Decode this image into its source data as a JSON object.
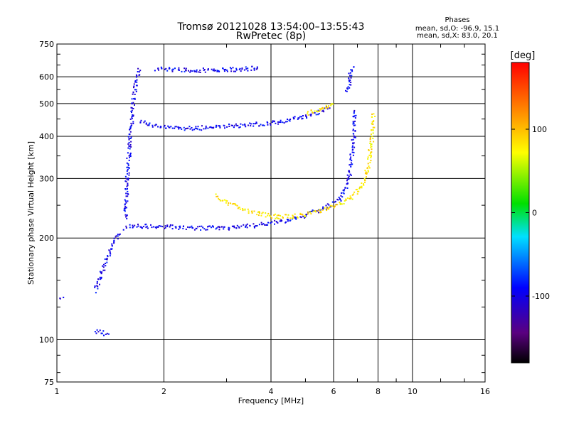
{
  "chart_data": {
    "type": "scatter",
    "title": "Tromsø 20121028 13:54:00–13:55:43",
    "subtitle": "RwPretec (8p)",
    "xlabel": "Frequency [MHz]",
    "ylabel": "Stationary phase Virtual Height [km]",
    "xscale": "log",
    "yscale": "log",
    "xlim": [
      1,
      16
    ],
    "ylim": [
      75,
      750
    ],
    "grid": true,
    "x_ticks": [
      1,
      2,
      4,
      6,
      8,
      10,
      16
    ],
    "x_tick_labels": [
      "1",
      "2",
      "4",
      "6",
      "8",
      "10",
      "16"
    ],
    "x_minor_ticks": [
      3,
      5,
      7,
      9,
      12,
      14
    ],
    "y_ticks": [
      75,
      100,
      200,
      300,
      400,
      500,
      600,
      750
    ],
    "y_tick_labels": [
      "75",
      "100",
      "200",
      "300",
      "400",
      "500",
      "600",
      "750"
    ],
    "y_minor_ticks": [
      80,
      90,
      125,
      150,
      175,
      250,
      350,
      450,
      550,
      650,
      700
    ],
    "stats": {
      "title": "Phases",
      "line_o": "mean, sd,O: -96.9, 15.1",
      "line_x": "mean, sd,X: 83.0, 20.1"
    },
    "colorbar": {
      "label": "[deg]",
      "min": -180,
      "max": 180,
      "ticks": [
        100,
        0,
        -100
      ],
      "tick_labels": [
        "100",
        "0",
        "-100"
      ]
    },
    "series": [
      {
        "mode": "O",
        "phase_deg": -97,
        "traces": [
          {
            "x": [
              1.28,
              1.3,
              1.33,
              1.36,
              1.39,
              1.42,
              1.45,
              1.48,
              1.5
            ],
            "y": [
              140,
              148,
              158,
              168,
              178,
              188,
              198,
              205,
              210
            ]
          },
          {
            "x": [
              1.55,
              1.6,
              1.7,
              1.8,
              1.9,
              2.0,
              2.2,
              2.5,
              3.0,
              3.5,
              4.0,
              4.5,
              5.0,
              5.5,
              5.8,
              6.0,
              6.2,
              6.4,
              6.6,
              6.7,
              6.8,
              6.85
            ],
            "y": [
              215,
              217,
              218,
              218,
              217,
              217,
              216,
              215,
              215,
              218,
              222,
              228,
              235,
              244,
              250,
              255,
              262,
              275,
              300,
              340,
              400,
              480
            ]
          },
          {
            "x": [
              1.7,
              1.8,
              1.9,
              2.0,
              2.2,
              2.5,
              3.0,
              3.5,
              4.0,
              4.5,
              5.0,
              5.5,
              5.8
            ],
            "y": [
              445,
              435,
              430,
              428,
              425,
              425,
              430,
              435,
              440,
              450,
              460,
              475,
              490
            ]
          },
          {
            "x": [
              1.9,
              2.0,
              2.2,
              2.5,
              2.8,
              3.0,
              3.3,
              3.5,
              3.7
            ],
            "y": [
              638,
              633,
              632,
              630,
              632,
              633,
              635,
              637,
              640
            ]
          },
          {
            "x": [
              1.55,
              1.57,
              1.6,
              1.63,
              1.66,
              1.7
            ],
            "y": [
              230,
              300,
              400,
              500,
              580,
              640
            ]
          },
          {
            "x": [
              1.28,
              1.32,
              1.36,
              1.4
            ],
            "y": [
              106,
              106,
              105,
              105
            ]
          },
          {
            "x": [
              1.02,
              1.04
            ],
            "y": [
              133,
              134
            ]
          },
          {
            "x": [
              6.5,
              6.6,
              6.65,
              6.7,
              6.75
            ],
            "y": [
              540,
              570,
              600,
              625,
              650
            ]
          }
        ]
      },
      {
        "mode": "X",
        "phase_deg": 83,
        "traces": [
          {
            "x": [
              2.8,
              3.0,
              3.3,
              3.6,
              3.9,
              4.2,
              4.6,
              5.0,
              5.5,
              6.0,
              6.4,
              6.8,
              7.1,
              7.3,
              7.5,
              7.6,
              7.7,
              7.75
            ],
            "y": [
              268,
              255,
              245,
              238,
              234,
              232,
              233,
              236,
              242,
              250,
              258,
              268,
              282,
              300,
              330,
              370,
              420,
              470
            ]
          },
          {
            "x": [
              5.0,
              5.3,
              5.6,
              5.8,
              6.0
            ],
            "y": [
              470,
              478,
              488,
              495,
              505
            ]
          }
        ]
      }
    ]
  }
}
